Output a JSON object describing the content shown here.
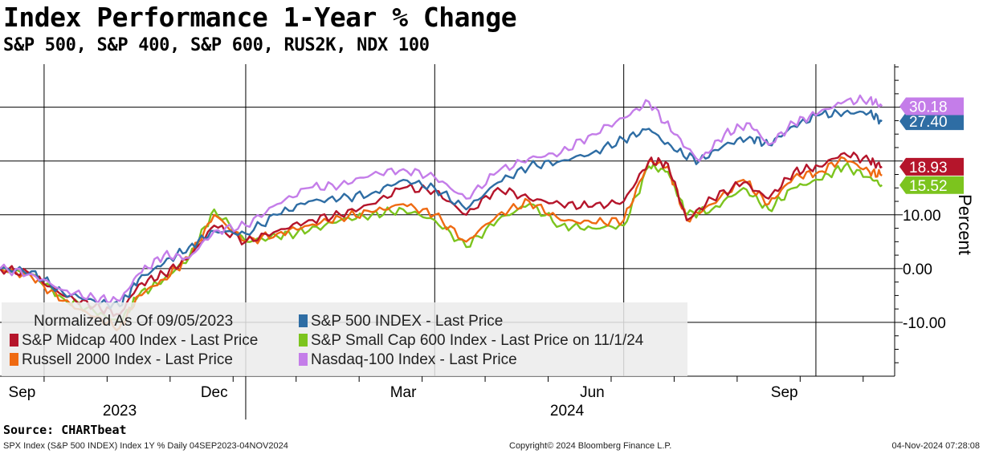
{
  "chart_data": {
    "type": "line",
    "title": "Index Performance 1-Year % Change",
    "subtitle": "S&P 500, S&P 400, S&P 600, RUS2K, NDX 100",
    "ylabel": "Percent",
    "ylim": [
      -20,
      38
    ],
    "yticks": [
      -10,
      0,
      10,
      20,
      30
    ],
    "ytick_labels": [
      "-10.00",
      "0.00",
      "10.00",
      "",
      ""
    ],
    "xlim": [
      0,
      14.2
    ],
    "x_unit": "months since 2023-09-04",
    "x_months": [
      {
        "label": "Sep",
        "x": 0.35
      },
      {
        "label": "Dec",
        "x": 3.4
      },
      {
        "label": "Mar",
        "x": 6.4
      },
      {
        "label": "Jun",
        "x": 9.4
      },
      {
        "label": "Sep",
        "x": 12.45
      }
    ],
    "x_years": [
      {
        "label": "2023",
        "x": 1.9
      },
      {
        "label": "2024",
        "x": 9.0
      }
    ],
    "year_divider_x": 3.9,
    "legend_title": "Normalized As Of 09/05/2023",
    "series": [
      {
        "name": "S&P 500 INDEX - Last Price",
        "color": "#2e6da4",
        "end_value": "27.40",
        "points": [
          [
            0,
            0
          ],
          [
            0.5,
            -0.5
          ],
          [
            1,
            -4.5
          ],
          [
            1.5,
            -6
          ],
          [
            1.9,
            -7
          ],
          [
            2.2,
            -2
          ],
          [
            2.6,
            1
          ],
          [
            3,
            4
          ],
          [
            3.4,
            7
          ],
          [
            3.9,
            6.5
          ],
          [
            4.4,
            10
          ],
          [
            4.9,
            12.5
          ],
          [
            5.4,
            13
          ],
          [
            5.9,
            14
          ],
          [
            6.4,
            16.5
          ],
          [
            6.9,
            15
          ],
          [
            7.4,
            11
          ],
          [
            7.9,
            16
          ],
          [
            8.4,
            19
          ],
          [
            8.9,
            20
          ],
          [
            9.4,
            21.5
          ],
          [
            9.9,
            24
          ],
          [
            10.3,
            26
          ],
          [
            10.7,
            22
          ],
          [
            11.1,
            20
          ],
          [
            11.5,
            23
          ],
          [
            11.9,
            24.5
          ],
          [
            12.2,
            23
          ],
          [
            12.6,
            26.5
          ],
          [
            13,
            28.5
          ],
          [
            13.4,
            29
          ],
          [
            13.8,
            29
          ],
          [
            14,
            27.4
          ]
        ]
      },
      {
        "name": "S&P Midcap 400 Index - Last Price",
        "color": "#b5152b",
        "end_value": "18.93",
        "points": [
          [
            0,
            0
          ],
          [
            0.5,
            -1
          ],
          [
            1,
            -5
          ],
          [
            1.5,
            -7
          ],
          [
            1.9,
            -8.5
          ],
          [
            2.2,
            -3
          ],
          [
            2.6,
            -1
          ],
          [
            3,
            2
          ],
          [
            3.4,
            8
          ],
          [
            3.9,
            5
          ],
          [
            4.4,
            7
          ],
          [
            4.9,
            9
          ],
          [
            5.4,
            10
          ],
          [
            5.9,
            12
          ],
          [
            6.4,
            15
          ],
          [
            6.9,
            14.5
          ],
          [
            7.4,
            10
          ],
          [
            7.9,
            15
          ],
          [
            8.4,
            13
          ],
          [
            8.9,
            12
          ],
          [
            9.4,
            11.5
          ],
          [
            9.9,
            12.5
          ],
          [
            10.3,
            20
          ],
          [
            10.6,
            19.5
          ],
          [
            10.9,
            9
          ],
          [
            11.3,
            13
          ],
          [
            11.8,
            16
          ],
          [
            12.2,
            13
          ],
          [
            12.6,
            18
          ],
          [
            13,
            19
          ],
          [
            13.4,
            21.5
          ],
          [
            13.8,
            20
          ],
          [
            14,
            18.93
          ]
        ]
      },
      {
        "name": "S&P Small Cap 600 Index - Last Price on 11/1/24",
        "color": "#7cc41e",
        "end_value": "15.52",
        "points": [
          [
            0,
            0
          ],
          [
            0.5,
            -1
          ],
          [
            1,
            -5.5
          ],
          [
            1.5,
            -8
          ],
          [
            1.9,
            -10
          ],
          [
            2.2,
            -5
          ],
          [
            2.6,
            -2
          ],
          [
            3,
            2
          ],
          [
            3.4,
            11
          ],
          [
            3.9,
            5
          ],
          [
            4.4,
            6
          ],
          [
            4.9,
            7
          ],
          [
            5.4,
            9
          ],
          [
            5.9,
            10
          ],
          [
            6.4,
            11
          ],
          [
            6.9,
            9
          ],
          [
            7.4,
            4
          ],
          [
            7.9,
            9
          ],
          [
            8.4,
            12
          ],
          [
            8.9,
            8
          ],
          [
            9.4,
            7.5
          ],
          [
            9.9,
            8
          ],
          [
            10.3,
            19
          ],
          [
            10.6,
            18
          ],
          [
            10.9,
            10
          ],
          [
            11.3,
            11
          ],
          [
            11.8,
            15
          ],
          [
            12.2,
            11
          ],
          [
            12.6,
            15
          ],
          [
            13,
            16.5
          ],
          [
            13.4,
            19
          ],
          [
            13.8,
            17
          ],
          [
            14,
            15.52
          ]
        ]
      },
      {
        "name": "Russell 2000 Index - Last Price",
        "color": "#ef6a12",
        "end_value": "",
        "points": [
          [
            0,
            0
          ],
          [
            0.5,
            -1.5
          ],
          [
            1,
            -6
          ],
          [
            1.5,
            -9
          ],
          [
            1.9,
            -11
          ],
          [
            2.2,
            -5
          ],
          [
            2.6,
            -2
          ],
          [
            3,
            2
          ],
          [
            3.4,
            10
          ],
          [
            3.9,
            5
          ],
          [
            4.4,
            6.5
          ],
          [
            4.9,
            8
          ],
          [
            5.4,
            9.5
          ],
          [
            5.9,
            10.5
          ],
          [
            6.4,
            12
          ],
          [
            6.9,
            10
          ],
          [
            7.4,
            5
          ],
          [
            7.9,
            10
          ],
          [
            8.4,
            12.5
          ],
          [
            8.9,
            9
          ],
          [
            9.4,
            8.5
          ],
          [
            9.9,
            9
          ],
          [
            10.3,
            20
          ],
          [
            10.6,
            19
          ],
          [
            10.9,
            9
          ],
          [
            11.3,
            12
          ],
          [
            11.8,
            16.5
          ],
          [
            12.2,
            12
          ],
          [
            12.6,
            17
          ],
          [
            13,
            18
          ],
          [
            13.4,
            20.5
          ],
          [
            13.8,
            18
          ],
          [
            14,
            17.3
          ]
        ]
      },
      {
        "name": "Nasdaq-100 Index - Last Price",
        "color": "#c47de9",
        "end_value": "30.18",
        "points": [
          [
            0,
            0
          ],
          [
            0.5,
            -1
          ],
          [
            1,
            -4
          ],
          [
            1.5,
            -5.5
          ],
          [
            1.9,
            -6
          ],
          [
            2.2,
            -1
          ],
          [
            2.6,
            2.5
          ],
          [
            3,
            2
          ],
          [
            3.4,
            7
          ],
          [
            3.9,
            8
          ],
          [
            4.4,
            12
          ],
          [
            4.9,
            15
          ],
          [
            5.4,
            15.5
          ],
          [
            5.9,
            17.5
          ],
          [
            6.4,
            18.5
          ],
          [
            6.9,
            17
          ],
          [
            7.4,
            13
          ],
          [
            7.9,
            18
          ],
          [
            8.4,
            20.5
          ],
          [
            8.9,
            21.5
          ],
          [
            9.4,
            25
          ],
          [
            9.9,
            28
          ],
          [
            10.3,
            31
          ],
          [
            10.7,
            25
          ],
          [
            11.1,
            20
          ],
          [
            11.5,
            25
          ],
          [
            11.9,
            27
          ],
          [
            12.2,
            23
          ],
          [
            12.6,
            27
          ],
          [
            13,
            29
          ],
          [
            13.4,
            31
          ],
          [
            13.8,
            31.5
          ],
          [
            14,
            30.18
          ]
        ]
      }
    ]
  },
  "legend": {
    "title": "Normalized As Of 09/05/2023",
    "items": [
      {
        "label": "S&P 500 INDEX - Last Price",
        "color": "#2e6da4"
      },
      {
        "label": "S&P Midcap 400 Index - Last Price",
        "color": "#b5152b"
      },
      {
        "label": "S&P Small Cap 600 Index - Last Price on 11/1/24",
        "color": "#7cc41e"
      },
      {
        "label": "Russell 2000 Index - Last Price",
        "color": "#ef6a12"
      },
      {
        "label": "Nasdaq-100 Index - Last Price",
        "color": "#c47de9"
      }
    ]
  },
  "source": "Source: CHARTbeat",
  "footer": {
    "left": "SPX Index (S&P 500 INDEX) Index 1Y %  Daily 04SEP2023-04NOV2024",
    "center": "Copyright© 2024 Bloomberg Finance L.P.",
    "right": "04-Nov-2024 07:28:08"
  }
}
